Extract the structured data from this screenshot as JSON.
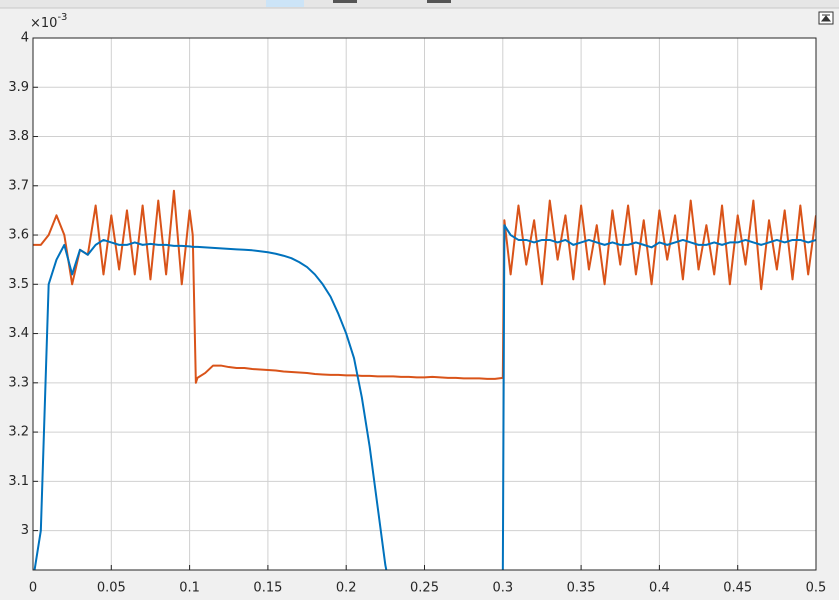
{
  "chart_data": {
    "type": "line",
    "y_exponent_label": {
      "base": "×10",
      "exponent": "-3"
    },
    "x": [
      0,
      0.005,
      0.01,
      0.015,
      0.02,
      0.025,
      0.03,
      0.035,
      0.04,
      0.045,
      0.05,
      0.055,
      0.06,
      0.065,
      0.07,
      0.075,
      0.08,
      0.085,
      0.09,
      0.095,
      0.1,
      0.102,
      0.104,
      0.105,
      0.11,
      0.115,
      0.12,
      0.125,
      0.13,
      0.135,
      0.14,
      0.145,
      0.15,
      0.155,
      0.16,
      0.165,
      0.17,
      0.175,
      0.18,
      0.185,
      0.19,
      0.195,
      0.2,
      0.205,
      0.21,
      0.215,
      0.22,
      0.225,
      0.23,
      0.235,
      0.24,
      0.245,
      0.25,
      0.255,
      0.26,
      0.265,
      0.27,
      0.275,
      0.28,
      0.285,
      0.29,
      0.295,
      0.3,
      0.301,
      0.305,
      0.31,
      0.315,
      0.32,
      0.325,
      0.33,
      0.335,
      0.34,
      0.345,
      0.35,
      0.355,
      0.36,
      0.365,
      0.37,
      0.375,
      0.38,
      0.385,
      0.39,
      0.395,
      0.4,
      0.405,
      0.41,
      0.415,
      0.42,
      0.425,
      0.43,
      0.435,
      0.44,
      0.445,
      0.45,
      0.455,
      0.46,
      0.465,
      0.47,
      0.475,
      0.48,
      0.485,
      0.49,
      0.495,
      0.5
    ],
    "series": [
      {
        "color": "#0072bd",
        "values": [
          2.9,
          3.0,
          3.5,
          3.55,
          3.58,
          3.52,
          3.57,
          3.56,
          3.58,
          3.59,
          3.585,
          3.58,
          3.58,
          3.585,
          3.58,
          3.582,
          3.58,
          3.58,
          3.578,
          3.578,
          3.577,
          3.576,
          3.576,
          3.576,
          3.575,
          3.574,
          3.573,
          3.572,
          3.571,
          3.57,
          3.569,
          3.567,
          3.565,
          3.562,
          3.558,
          3.553,
          3.545,
          3.535,
          3.52,
          3.5,
          3.475,
          3.44,
          3.4,
          3.35,
          3.27,
          3.17,
          3.05,
          2.93,
          2.85,
          null,
          null,
          null,
          null,
          null,
          null,
          null,
          null,
          null,
          null,
          null,
          null,
          null,
          2.9,
          3.62,
          3.6,
          3.59,
          3.59,
          3.585,
          3.59,
          3.59,
          3.585,
          3.59,
          3.58,
          3.585,
          3.59,
          3.585,
          3.58,
          3.585,
          3.58,
          3.58,
          3.585,
          3.58,
          3.575,
          3.585,
          3.58,
          3.585,
          3.59,
          3.585,
          3.58,
          3.58,
          3.585,
          3.58,
          3.585,
          3.585,
          3.59,
          3.585,
          3.58,
          3.585,
          3.59,
          3.585,
          3.59,
          3.59,
          3.585,
          3.59
        ]
      },
      {
        "color": "#d95319",
        "values": [
          3.58,
          3.58,
          3.6,
          3.64,
          3.6,
          3.5,
          3.57,
          3.56,
          3.66,
          3.52,
          3.64,
          3.53,
          3.65,
          3.52,
          3.66,
          3.51,
          3.67,
          3.52,
          3.69,
          3.5,
          3.65,
          3.6,
          3.3,
          3.31,
          3.32,
          3.335,
          3.335,
          3.332,
          3.33,
          3.33,
          3.328,
          3.327,
          3.326,
          3.325,
          3.323,
          3.322,
          3.321,
          3.32,
          3.318,
          3.317,
          3.316,
          3.316,
          3.315,
          3.315,
          3.314,
          3.314,
          3.313,
          3.313,
          3.313,
          3.312,
          3.312,
          3.311,
          3.311,
          3.312,
          3.311,
          3.31,
          3.31,
          3.309,
          3.309,
          3.309,
          3.308,
          3.308,
          3.31,
          3.63,
          3.52,
          3.66,
          3.54,
          3.63,
          3.5,
          3.67,
          3.55,
          3.64,
          3.51,
          3.66,
          3.53,
          3.62,
          3.5,
          3.65,
          3.54,
          3.66,
          3.52,
          3.63,
          3.5,
          3.65,
          3.55,
          3.64,
          3.51,
          3.67,
          3.53,
          3.62,
          3.52,
          3.66,
          3.5,
          3.64,
          3.54,
          3.67,
          3.49,
          3.63,
          3.53,
          3.65,
          3.51,
          3.66,
          3.52,
          3.64
        ]
      }
    ],
    "xlim": [
      0,
      0.5
    ],
    "xticks": [
      0,
      0.05,
      0.1,
      0.15,
      0.2,
      0.25,
      0.3,
      0.35,
      0.4,
      0.45,
      0.5
    ],
    "ylim": [
      2.92,
      4.0
    ],
    "yticks": [
      3,
      3.1,
      3.2,
      3.3,
      3.4,
      3.5,
      3.6,
      3.7,
      3.8,
      3.9,
      4
    ],
    "grid": true
  }
}
